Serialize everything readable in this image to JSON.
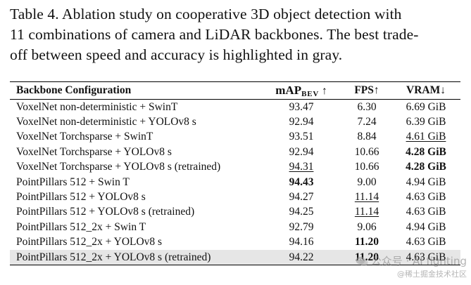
{
  "caption": {
    "line1": "Table 4.  Ablation study on cooperative 3D object detection with",
    "line2": "11 combinations of camera and LiDAR backbones. The best trade-",
    "line3": "off between speed and accuracy is highlighted in gray."
  },
  "table": {
    "headers": {
      "config": "Backbone Configuration",
      "map_main": "mAP",
      "map_sub": "BEV",
      "map_arrow": "↑",
      "fps": "FPS↑",
      "vram": "VRAM↓"
    },
    "rows": [
      {
        "config": "VoxelNet non-deterministic + SwinT",
        "map": "93.47",
        "fps": "6.30",
        "vram": "6.69 GiB"
      },
      {
        "config": "VoxelNet non-deterministic + YOLOv8 s",
        "map": "92.94",
        "fps": "7.24",
        "vram": "6.39 GiB"
      },
      {
        "config": "VoxelNet Torchsparse + SwinT",
        "map": "93.51",
        "fps": "8.84",
        "vram": "4.61 GiB"
      },
      {
        "config": "VoxelNet Torchsparse + YOLOv8 s",
        "map": "92.94",
        "fps": "10.66",
        "vram": "4.28 GiB"
      },
      {
        "config": "VoxelNet Torchsparse + YOLOv8 s (retrained)",
        "map": "94.31",
        "fps": "10.66",
        "vram": "4.28 GiB"
      },
      {
        "config": "PointPillars 512 + Swin T",
        "map": "94.43",
        "fps": "9.00",
        "vram": "4.94 GiB"
      },
      {
        "config": "PointPillars 512 + YOLOv8 s",
        "map": "94.27",
        "fps": "11.14",
        "vram": "4.63 GiB"
      },
      {
        "config": "PointPillars 512 + YOLOv8 s (retrained)",
        "map": "94.25",
        "fps": "11.14",
        "vram": "4.63 GiB"
      },
      {
        "config": "PointPillars 512_2x + Swin T",
        "map": "92.79",
        "fps": "9.06",
        "vram": "4.94 GiB"
      },
      {
        "config": "PointPillars 512_2x + YOLOv8 s",
        "map": "94.16",
        "fps": "11.20",
        "vram": "4.63 GiB"
      },
      {
        "config": "PointPillars 512_2x + YOLOv8 s (retrained)",
        "map": "94.22",
        "fps": "11.20",
        "vram": "4.63 GiB"
      }
    ]
  },
  "watermark": {
    "line1": "公众号 · AI fighting",
    "line2": "@稀土掘金技术社区"
  },
  "icons": {
    "watermark_icon": "wechat-icon"
  }
}
